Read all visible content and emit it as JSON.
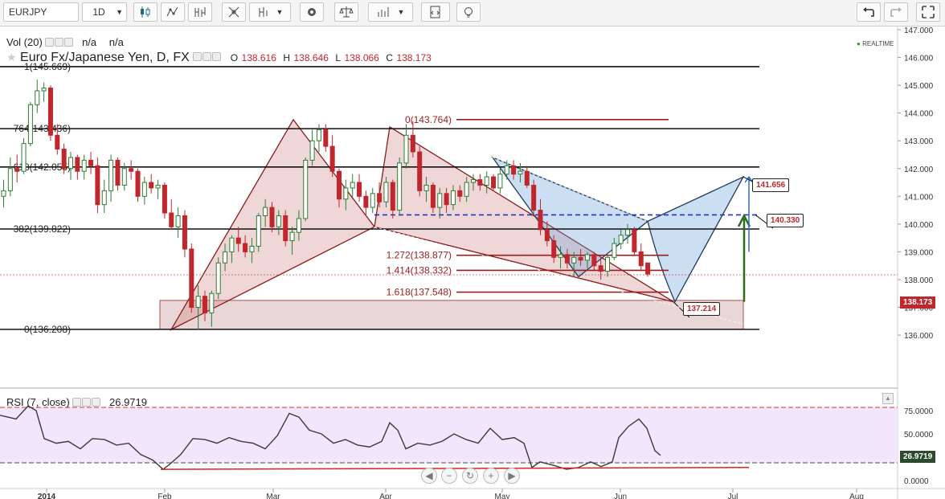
{
  "toolbar": {
    "symbol": "EURJPY",
    "interval": "1D",
    "buttons": [
      {
        "name": "candles-icon"
      },
      {
        "name": "compare-icon"
      },
      {
        "name": "indicators-icon"
      },
      {
        "name": "drawing-icon"
      },
      {
        "name": "settings-icon"
      },
      {
        "name": "balance-icon"
      },
      {
        "name": "strategy-icon"
      },
      {
        "name": "script-icon"
      },
      {
        "name": "idea-icon"
      },
      {
        "name": "undo-icon"
      },
      {
        "name": "redo-icon"
      },
      {
        "name": "fullscreen-icon"
      }
    ]
  },
  "legend": {
    "vol_label": "Vol (20)",
    "vol_vals": [
      "n/a",
      "n/a"
    ],
    "title": "Euro Fx/Japanese Yen, D, FX",
    "o_label": "O",
    "o_val": "138.616",
    "h_label": "H",
    "h_val": "138.646",
    "l_label": "L",
    "l_val": "138.066",
    "c_label": "C",
    "c_val": "138.173",
    "realtime": "REALTIME"
  },
  "colors": {
    "up": "#2e7d32",
    "down": "#c0272d",
    "pattern_red": "#8b1a1a",
    "pattern_blue": "#1f3a5a",
    "rsi_fill": "#f1e6fb",
    "dashed_blue": "#2233bb"
  },
  "fib": [
    {
      "label": "1(145.669)",
      "value": 145.669
    },
    {
      "label": "764(143.436)",
      "value": 143.436
    },
    {
      "label": "618(142.055)",
      "value": 142.055
    },
    {
      "label": "382(139.822)",
      "value": 139.822
    },
    {
      "label": "0(136.208)",
      "value": 136.208
    }
  ],
  "ext": [
    {
      "label": "0(143.764)",
      "value": 143.764
    },
    {
      "label": "1.272(138.877)",
      "value": 138.877
    },
    {
      "label": "1.414(138.332)",
      "value": 138.332
    },
    {
      "label": "1.618(137.548)",
      "value": 137.548
    }
  ],
  "badges": {
    "b1": "141.656",
    "b2": "140.330",
    "b3": "137.214"
  },
  "current_price": "138.173",
  "price_axis": [
    "147.000",
    "146.000",
    "145.000",
    "144.000",
    "143.000",
    "142.000",
    "141.000",
    "140.000",
    "139.000",
    "138.000",
    "137.000",
    "136.000"
  ],
  "rsi": {
    "label": "RSI (7, close)",
    "value": "26.9719",
    "axis": [
      "75.0000",
      "50.0000",
      "25.0000",
      "0.0000"
    ]
  },
  "x_axis": [
    "2014",
    "Feb",
    "Mar",
    "Apr",
    "May",
    "Jun",
    "Jul",
    "Aug"
  ],
  "chart_data": {
    "type": "candlestick",
    "title": "Euro Fx/Japanese Yen, D, FX",
    "ylim": [
      135.5,
      147.5
    ],
    "candles": [
      [
        141.0,
        141.6,
        140.6,
        141.2
      ],
      [
        141.2,
        142.4,
        141.0,
        142.0
      ],
      [
        142.0,
        142.5,
        141.5,
        141.9
      ],
      [
        141.9,
        143.1,
        141.8,
        142.9
      ],
      [
        142.9,
        144.4,
        142.8,
        144.3
      ],
      [
        144.3,
        145.2,
        144.0,
        144.8
      ],
      [
        144.8,
        145.1,
        144.4,
        144.9
      ],
      [
        144.9,
        145.0,
        143.0,
        143.2
      ],
      [
        143.2,
        143.6,
        142.5,
        142.7
      ],
      [
        142.7,
        142.9,
        141.8,
        142.0
      ],
      [
        142.0,
        142.6,
        141.6,
        142.4
      ],
      [
        142.4,
        142.5,
        141.6,
        141.9
      ],
      [
        141.9,
        142.5,
        141.6,
        142.3
      ],
      [
        142.3,
        142.6,
        141.8,
        142.1
      ],
      [
        142.1,
        142.4,
        140.4,
        140.7
      ],
      [
        140.7,
        141.6,
        140.4,
        141.2
      ],
      [
        141.2,
        142.5,
        140.8,
        142.3
      ],
      [
        142.3,
        142.4,
        141.2,
        141.4
      ],
      [
        141.4,
        142.2,
        141.2,
        142.0
      ],
      [
        142.0,
        142.3,
        141.6,
        141.9
      ],
      [
        141.9,
        142.0,
        140.8,
        141.0
      ],
      [
        141.0,
        141.7,
        140.7,
        141.5
      ],
      [
        141.5,
        141.8,
        141.1,
        141.3
      ],
      [
        141.3,
        141.6,
        140.9,
        141.4
      ],
      [
        141.4,
        141.5,
        140.2,
        140.4
      ],
      [
        140.4,
        140.9,
        139.8,
        139.9
      ],
      [
        139.9,
        140.6,
        139.5,
        140.3
      ],
      [
        140.3,
        140.5,
        138.8,
        139.1
      ],
      [
        139.1,
        139.3,
        136.8,
        137.0
      ],
      [
        137.0,
        137.8,
        136.2,
        137.4
      ],
      [
        137.4,
        137.6,
        136.5,
        136.8
      ],
      [
        136.8,
        137.6,
        136.3,
        137.5
      ],
      [
        137.5,
        138.8,
        137.3,
        138.6
      ],
      [
        138.6,
        139.3,
        138.3,
        139.0
      ],
      [
        139.0,
        139.6,
        138.6,
        139.5
      ],
      [
        139.5,
        139.9,
        139.0,
        139.3
      ],
      [
        139.3,
        139.6,
        138.8,
        139.0
      ],
      [
        139.0,
        139.5,
        138.6,
        139.2
      ],
      [
        139.2,
        140.4,
        139.0,
        140.3
      ],
      [
        140.3,
        140.9,
        139.9,
        140.6
      ],
      [
        140.6,
        140.8,
        139.7,
        139.9
      ],
      [
        139.9,
        140.5,
        139.6,
        140.3
      ],
      [
        140.3,
        140.5,
        139.2,
        139.4
      ],
      [
        139.4,
        139.9,
        138.9,
        139.7
      ],
      [
        139.7,
        140.5,
        139.4,
        140.2
      ],
      [
        140.2,
        142.4,
        140.1,
        142.3
      ],
      [
        142.3,
        143.4,
        142.1,
        143.0
      ],
      [
        143.0,
        143.6,
        142.6,
        143.4
      ],
      [
        143.4,
        143.6,
        142.6,
        142.8
      ],
      [
        142.8,
        143.2,
        141.7,
        141.9
      ],
      [
        141.9,
        142.0,
        140.6,
        140.9
      ],
      [
        140.9,
        141.6,
        140.5,
        141.3
      ],
      [
        141.3,
        141.8,
        140.9,
        141.5
      ],
      [
        141.5,
        141.8,
        140.8,
        141.0
      ],
      [
        141.0,
        141.2,
        140.3,
        140.6
      ],
      [
        140.6,
        141.3,
        140.4,
        141.1
      ],
      [
        141.1,
        141.5,
        140.6,
        140.8
      ],
      [
        140.8,
        141.7,
        140.6,
        141.5
      ],
      [
        141.5,
        141.6,
        140.2,
        140.5
      ],
      [
        140.5,
        142.4,
        140.3,
        142.2
      ],
      [
        142.2,
        143.6,
        142.0,
        143.2
      ],
      [
        143.2,
        143.7,
        142.4,
        142.6
      ],
      [
        142.6,
        142.8,
        141.0,
        141.2
      ],
      [
        141.2,
        141.7,
        140.8,
        141.4
      ],
      [
        141.4,
        141.5,
        140.4,
        140.6
      ],
      [
        140.6,
        141.3,
        140.2,
        141.1
      ],
      [
        141.1,
        141.3,
        140.4,
        140.7
      ],
      [
        140.7,
        141.4,
        140.5,
        141.2
      ],
      [
        141.2,
        141.4,
        140.8,
        141.0
      ],
      [
        141.0,
        141.7,
        140.8,
        141.5
      ],
      [
        141.5,
        141.8,
        141.2,
        141.6
      ],
      [
        141.6,
        141.8,
        141.2,
        141.4
      ],
      [
        141.4,
        141.9,
        141.1,
        141.7
      ],
      [
        141.7,
        141.8,
        141.2,
        141.3
      ],
      [
        141.3,
        142.0,
        141.1,
        141.8
      ],
      [
        141.8,
        142.3,
        141.6,
        142.1
      ],
      [
        142.1,
        142.3,
        141.6,
        141.8
      ],
      [
        141.8,
        142.2,
        141.5,
        141.9
      ],
      [
        141.9,
        142.1,
        141.3,
        141.4
      ],
      [
        141.4,
        141.6,
        140.3,
        140.5
      ],
      [
        140.5,
        140.9,
        139.6,
        139.8
      ],
      [
        139.8,
        140.1,
        139.2,
        139.4
      ],
      [
        139.4,
        139.6,
        138.6,
        138.8
      ],
      [
        138.8,
        139.2,
        138.4,
        138.9
      ],
      [
        138.9,
        139.1,
        138.4,
        138.6
      ],
      [
        138.6,
        139.0,
        138.1,
        138.8
      ],
      [
        138.8,
        139.1,
        138.5,
        138.7
      ],
      [
        138.7,
        139.0,
        138.4,
        138.9
      ],
      [
        138.9,
        139.0,
        138.3,
        138.5
      ],
      [
        138.5,
        138.8,
        138.0,
        138.3
      ],
      [
        138.3,
        138.9,
        138.1,
        138.8
      ],
      [
        138.8,
        139.5,
        138.7,
        139.3
      ],
      [
        139.3,
        139.8,
        139.1,
        139.6
      ],
      [
        139.6,
        140.0,
        139.3,
        139.8
      ],
      [
        139.8,
        139.9,
        138.9,
        139.0
      ],
      [
        139.0,
        139.3,
        138.3,
        138.5
      ],
      [
        138.6,
        138.6,
        138.1,
        138.2
      ]
    ]
  }
}
